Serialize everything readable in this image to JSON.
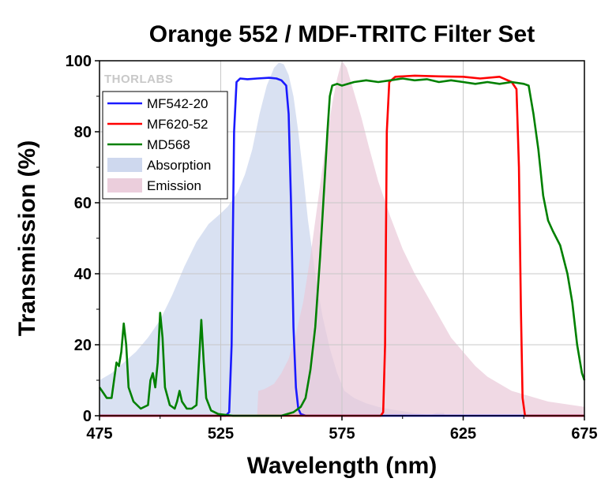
{
  "chart_data": {
    "type": "line",
    "title": "Orange 552 / MDF-TRITC Filter Set",
    "xlabel": "Wavelength (nm)",
    "ylabel": "Transmission (%)",
    "xlim": [
      475,
      675
    ],
    "ylim": [
      0,
      100
    ],
    "xticks": [
      475,
      525,
      575,
      625,
      675
    ],
    "yticks": [
      0,
      20,
      40,
      60,
      80,
      100
    ],
    "grid": true,
    "legend_position": "top-left",
    "watermark": "THORLABS",
    "series": [
      {
        "name": "MF542-20",
        "kind": "line",
        "color": "#1a1aff",
        "points": [
          [
            475,
            0
          ],
          [
            527,
            0
          ],
          [
            528.5,
            1
          ],
          [
            529.5,
            20
          ],
          [
            530.5,
            80
          ],
          [
            531.5,
            94
          ],
          [
            533,
            95
          ],
          [
            536,
            94.8
          ],
          [
            540,
            95
          ],
          [
            545,
            95.2
          ],
          [
            548,
            95
          ],
          [
            550,
            94.5
          ],
          [
            552,
            93
          ],
          [
            553,
            85
          ],
          [
            554,
            60
          ],
          [
            555,
            25
          ],
          [
            556,
            8
          ],
          [
            557,
            2
          ],
          [
            558,
            0.5
          ],
          [
            560,
            0
          ],
          [
            675,
            0
          ]
        ]
      },
      {
        "name": "MF620-52",
        "kind": "line",
        "color": "#ff0000",
        "points": [
          [
            475,
            0
          ],
          [
            591,
            0
          ],
          [
            592,
            1
          ],
          [
            592.8,
            20
          ],
          [
            593.5,
            80
          ],
          [
            594.5,
            94
          ],
          [
            597,
            95.5
          ],
          [
            605,
            95.8
          ],
          [
            615,
            95.6
          ],
          [
            625,
            95.5
          ],
          [
            632,
            95
          ],
          [
            640,
            95.5
          ],
          [
            645,
            94
          ],
          [
            647,
            92
          ],
          [
            648,
            70
          ],
          [
            648.8,
            30
          ],
          [
            649.5,
            5
          ],
          [
            650.5,
            0
          ],
          [
            675,
            0
          ]
        ]
      },
      {
        "name": "MD568",
        "kind": "line",
        "color": "#008000",
        "points": [
          [
            475,
            8
          ],
          [
            476,
            7
          ],
          [
            478,
            5
          ],
          [
            480,
            5
          ],
          [
            481,
            10
          ],
          [
            482,
            15
          ],
          [
            483,
            14
          ],
          [
            484,
            18
          ],
          [
            485,
            26
          ],
          [
            486,
            20
          ],
          [
            487,
            8
          ],
          [
            489,
            4
          ],
          [
            492,
            2
          ],
          [
            495,
            3
          ],
          [
            496,
            10
          ],
          [
            497,
            12
          ],
          [
            498,
            8
          ],
          [
            499,
            15
          ],
          [
            500,
            29
          ],
          [
            501,
            22
          ],
          [
            502,
            8
          ],
          [
            504,
            3
          ],
          [
            506,
            2
          ],
          [
            507,
            4
          ],
          [
            508,
            7
          ],
          [
            509,
            4
          ],
          [
            511,
            2
          ],
          [
            513,
            2
          ],
          [
            515,
            3
          ],
          [
            516,
            15
          ],
          [
            517,
            27
          ],
          [
            518,
            15
          ],
          [
            519,
            5
          ],
          [
            521,
            1.5
          ],
          [
            524,
            0.5
          ],
          [
            530,
            0
          ],
          [
            540,
            0
          ],
          [
            550,
            0
          ],
          [
            555,
            1
          ],
          [
            558,
            2.5
          ],
          [
            560,
            5
          ],
          [
            562,
            13
          ],
          [
            564,
            25
          ],
          [
            566,
            45
          ],
          [
            568,
            68
          ],
          [
            569,
            80
          ],
          [
            570,
            90
          ],
          [
            571,
            93
          ],
          [
            573,
            93.5
          ],
          [
            575,
            93
          ],
          [
            580,
            94
          ],
          [
            585,
            94.5
          ],
          [
            590,
            94
          ],
          [
            595,
            94.5
          ],
          [
            600,
            95
          ],
          [
            605,
            94.5
          ],
          [
            610,
            94.8
          ],
          [
            615,
            94
          ],
          [
            620,
            94.5
          ],
          [
            625,
            94
          ],
          [
            630,
            93.5
          ],
          [
            635,
            94
          ],
          [
            640,
            93.5
          ],
          [
            645,
            94
          ],
          [
            650,
            93.5
          ],
          [
            652,
            93
          ],
          [
            654,
            85
          ],
          [
            656,
            75
          ],
          [
            658,
            62
          ],
          [
            660,
            55
          ],
          [
            662,
            52
          ],
          [
            665,
            48
          ],
          [
            668,
            40
          ],
          [
            670,
            32
          ],
          [
            672,
            20
          ],
          [
            674,
            12
          ],
          [
            675,
            10
          ]
        ]
      },
      {
        "name": "Absorption",
        "kind": "area",
        "color": "#c9d4ec",
        "points": [
          [
            475,
            10
          ],
          [
            480,
            12
          ],
          [
            485,
            15
          ],
          [
            490,
            18
          ],
          [
            495,
            22
          ],
          [
            500,
            27
          ],
          [
            505,
            34
          ],
          [
            510,
            42
          ],
          [
            515,
            49
          ],
          [
            520,
            54
          ],
          [
            525,
            57
          ],
          [
            528,
            59
          ],
          [
            532,
            63
          ],
          [
            535,
            68
          ],
          [
            538,
            75
          ],
          [
            541,
            85
          ],
          [
            544,
            93
          ],
          [
            547,
            98
          ],
          [
            549,
            99.5
          ],
          [
            551,
            99
          ],
          [
            553,
            96
          ],
          [
            555,
            90
          ],
          [
            557,
            80
          ],
          [
            559,
            68
          ],
          [
            561,
            55
          ],
          [
            564,
            40
          ],
          [
            567,
            28
          ],
          [
            570,
            19
          ],
          [
            573,
            12
          ],
          [
            576,
            7
          ],
          [
            580,
            5
          ],
          [
            585,
            3.5
          ],
          [
            590,
            2.5
          ],
          [
            595,
            1.8
          ],
          [
            600,
            1.3
          ],
          [
            605,
            0.7
          ],
          [
            610,
            0.3
          ],
          [
            612,
            0.3
          ],
          [
            614,
            0.8
          ],
          [
            617,
            0.8
          ],
          [
            617.5,
            0
          ]
        ]
      },
      {
        "name": "Emission",
        "kind": "area",
        "color": "#e9c9d8",
        "points": [
          [
            540,
            0
          ],
          [
            540.5,
            7
          ],
          [
            543,
            7.5
          ],
          [
            547,
            9
          ],
          [
            550,
            12
          ],
          [
            553,
            16
          ],
          [
            556,
            23
          ],
          [
            559,
            32
          ],
          [
            562,
            45
          ],
          [
            565,
            60
          ],
          [
            568,
            75
          ],
          [
            571,
            88
          ],
          [
            573,
            95
          ],
          [
            575,
            100
          ],
          [
            577,
            98
          ],
          [
            580,
            91
          ],
          [
            583,
            84
          ],
          [
            586,
            76
          ],
          [
            590,
            66
          ],
          [
            595,
            56
          ],
          [
            600,
            47
          ],
          [
            605,
            40
          ],
          [
            610,
            34
          ],
          [
            615,
            28
          ],
          [
            620,
            22
          ],
          [
            625,
            18
          ],
          [
            630,
            14
          ],
          [
            635,
            11
          ],
          [
            640,
            9
          ],
          [
            645,
            7
          ],
          [
            650,
            6
          ],
          [
            655,
            5
          ],
          [
            660,
            4
          ],
          [
            665,
            3.5
          ],
          [
            670,
            3
          ],
          [
            675,
            2.5
          ]
        ]
      }
    ]
  }
}
